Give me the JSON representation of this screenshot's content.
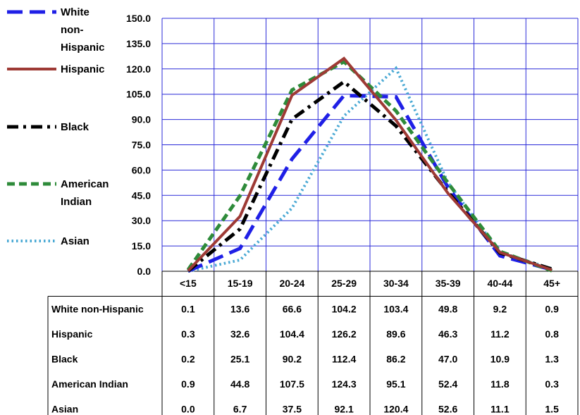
{
  "chart_data": {
    "type": "line",
    "categories": [
      "<15",
      "15-19",
      "20-24",
      "25-29",
      "30-34",
      "35-39",
      "40-44",
      "45+"
    ],
    "y_ticks": [
      "0.0",
      "15.0",
      "30.0",
      "45.0",
      "60.0",
      "75.0",
      "90.0",
      "105.0",
      "120.0",
      "135.0",
      "150.0"
    ],
    "ylim": [
      0,
      150
    ],
    "grid": true,
    "legend_position": "left",
    "series": [
      {
        "name": "White non-Hispanic",
        "legend_lines": [
          "White",
          "non-",
          "Hispanic"
        ],
        "color": "#1f1fe6",
        "dash": "long-dash",
        "values": [
          0.1,
          13.6,
          66.6,
          104.2,
          103.4,
          49.8,
          9.2,
          0.9
        ]
      },
      {
        "name": "Hispanic",
        "legend_lines": [
          "Hispanic"
        ],
        "color": "#9e3a35",
        "dash": "solid",
        "values": [
          0.3,
          32.6,
          104.4,
          126.2,
          89.6,
          46.3,
          11.2,
          0.8
        ]
      },
      {
        "name": "Black",
        "legend_lines": [
          "Black"
        ],
        "color": "#000000",
        "dash": "dash-dot",
        "values": [
          0.2,
          25.1,
          90.2,
          112.4,
          86.2,
          47.0,
          10.9,
          1.3
        ]
      },
      {
        "name": "American Indian",
        "legend_lines": [
          "American",
          "Indian"
        ],
        "color": "#2e8b3a",
        "dash": "dashed",
        "values": [
          0.9,
          44.8,
          107.5,
          124.3,
          95.1,
          52.4,
          11.8,
          0.3
        ]
      },
      {
        "name": "Asian",
        "legend_lines": [
          "Asian"
        ],
        "color": "#4aa9d4",
        "dash": "dotted",
        "values": [
          0.0,
          6.7,
          37.5,
          92.1,
          120.4,
          52.6,
          11.1,
          1.5
        ]
      }
    ],
    "table": {
      "rows": [
        {
          "label": "White non-Hispanic",
          "cells": [
            "0.1",
            "13.6",
            "66.6",
            "104.2",
            "103.4",
            "49.8",
            "9.2",
            "0.9"
          ]
        },
        {
          "label": "Hispanic",
          "cells": [
            "0.3",
            "32.6",
            "104.4",
            "126.2",
            "89.6",
            "46.3",
            "11.2",
            "0.8"
          ]
        },
        {
          "label": "Black",
          "cells": [
            "0.2",
            "25.1",
            "90.2",
            "112.4",
            "86.2",
            "47.0",
            "10.9",
            "1.3"
          ]
        },
        {
          "label": "American Indian",
          "cells": [
            "0.9",
            "44.8",
            "107.5",
            "124.3",
            "95.1",
            "52.4",
            "11.8",
            "0.3"
          ]
        },
        {
          "label": "Asian",
          "cells": [
            "0.0",
            "6.7",
            "37.5",
            "92.1",
            "120.4",
            "52.6",
            "11.1",
            "1.5"
          ]
        }
      ]
    }
  }
}
